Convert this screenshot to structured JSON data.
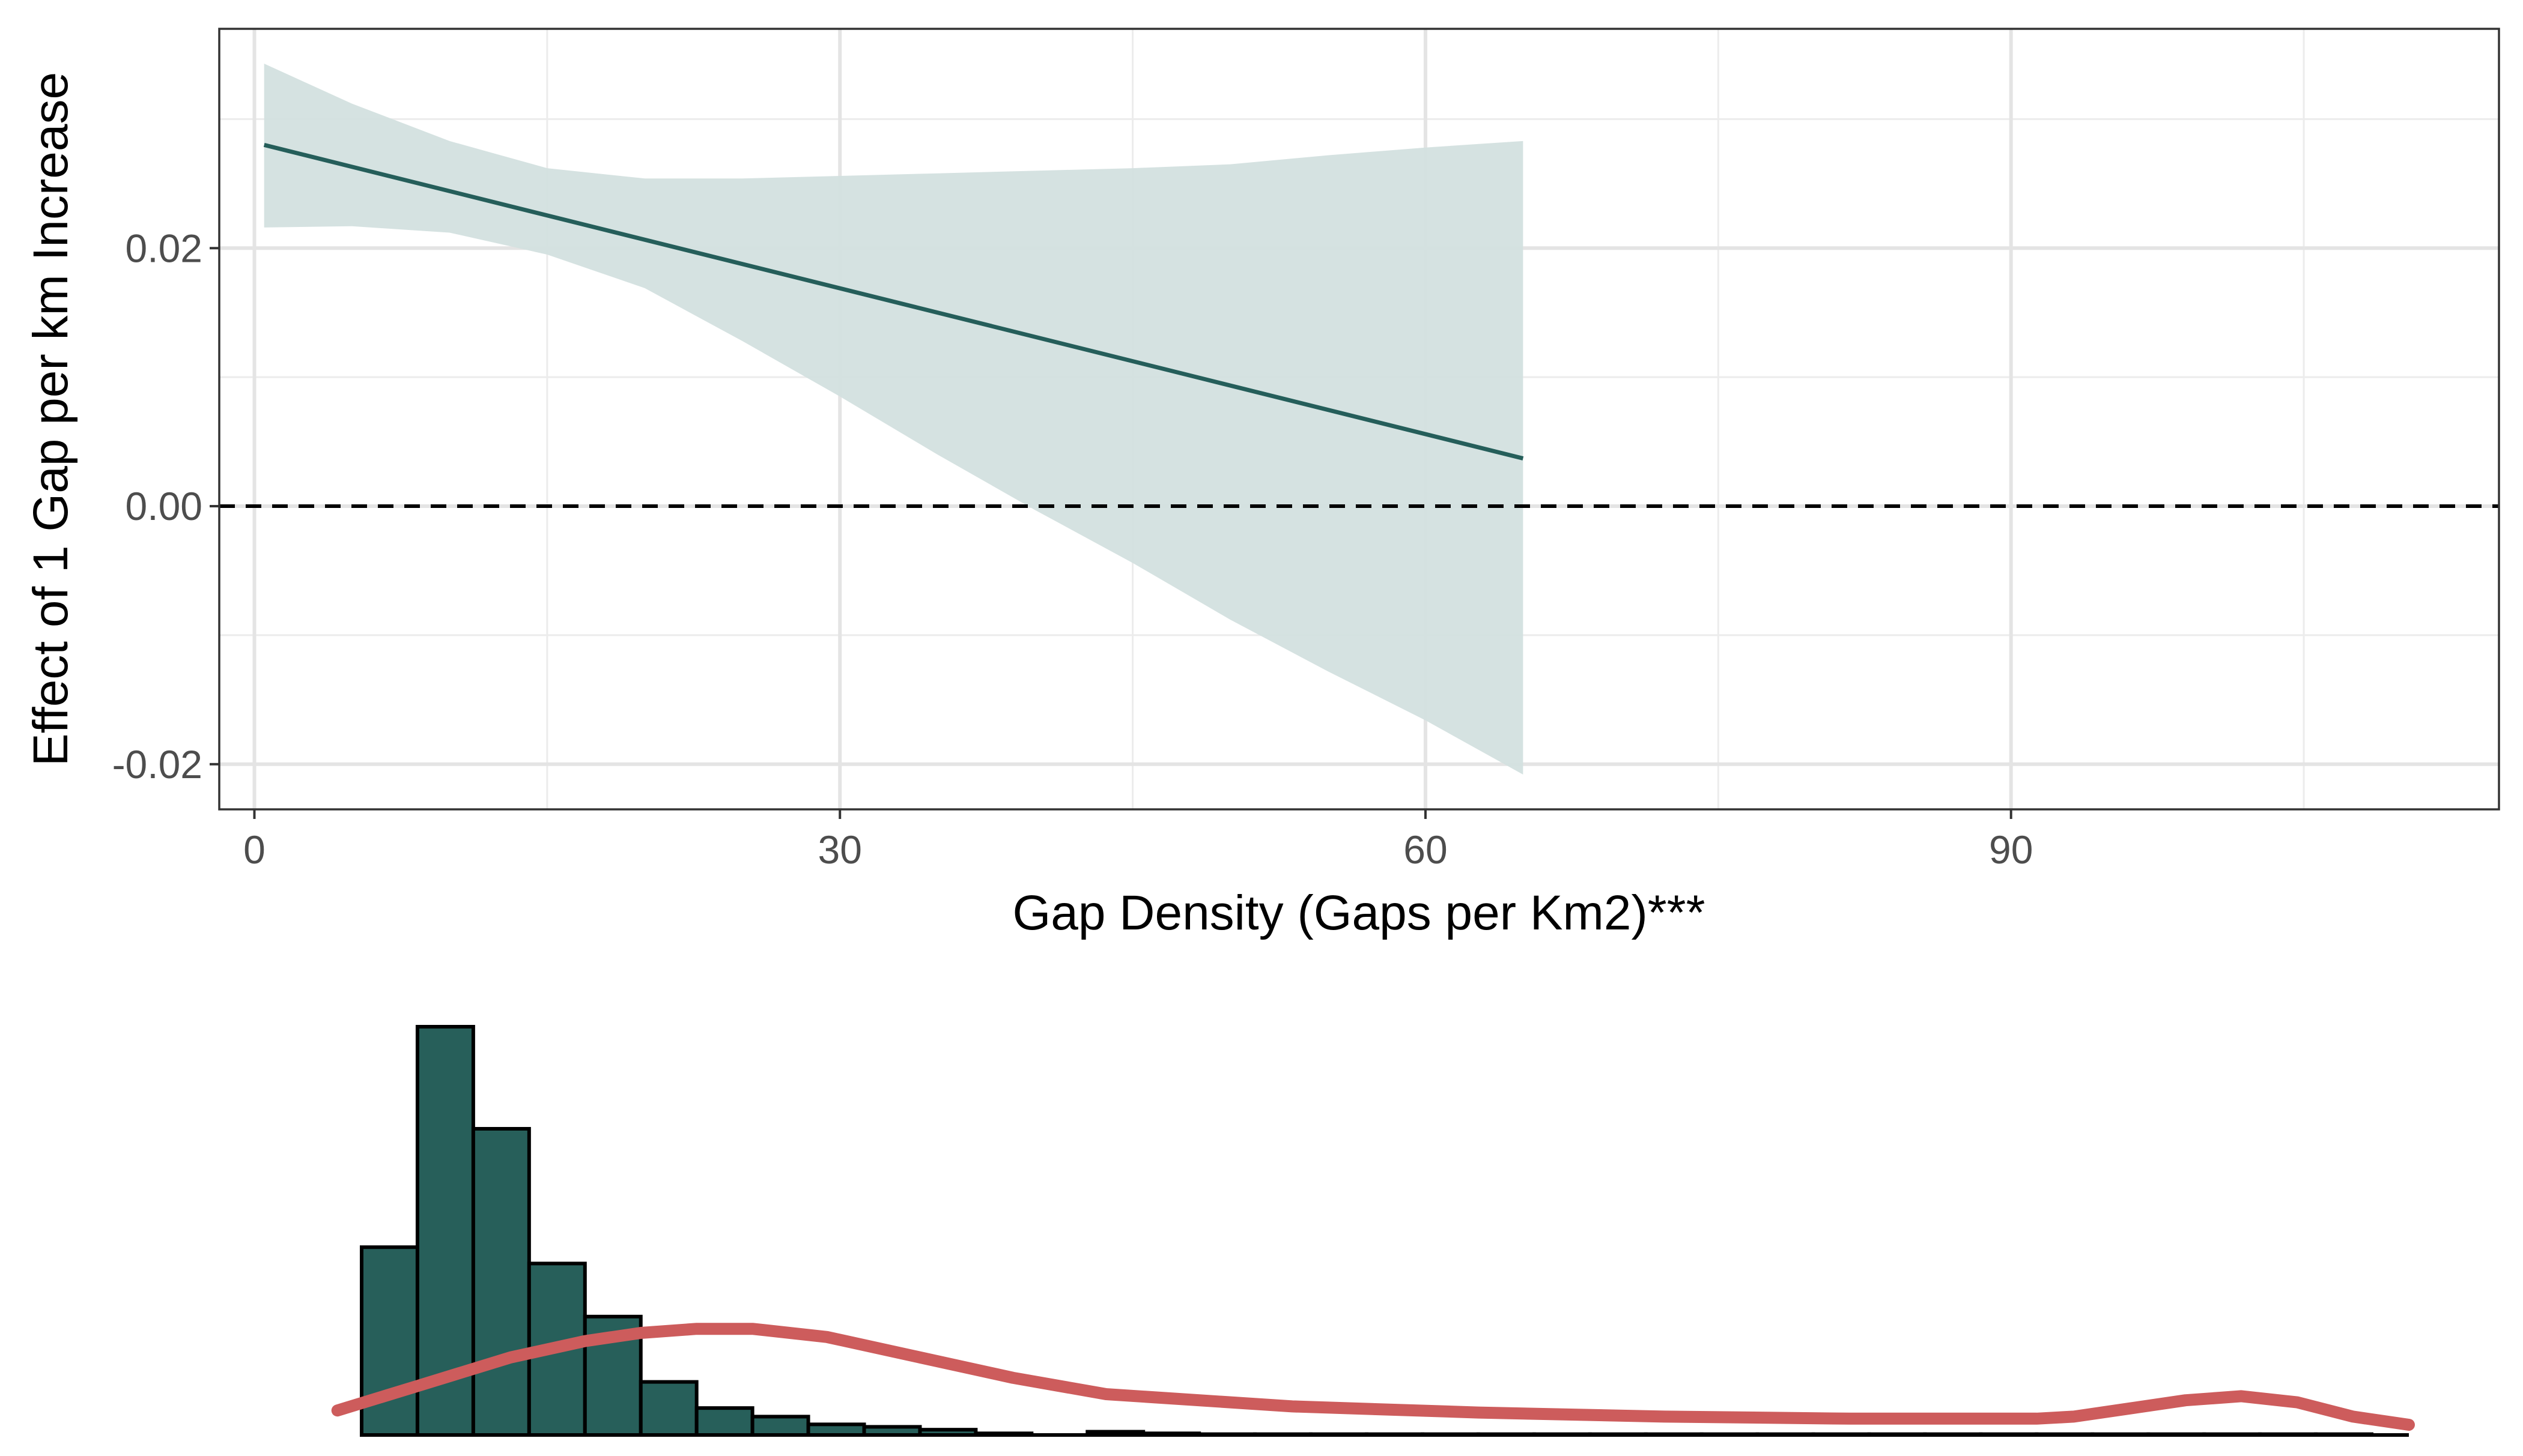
{
  "chart_data": [
    {
      "type": "line",
      "panel": "marginal-effect",
      "xlabel": "Gap Density (Gaps per Km2)***",
      "ylabel": "Effect of 1 Gap per km Increase",
      "xlim": [
        -1.8,
        115
      ],
      "ylim": [
        -0.0235,
        0.037
      ],
      "xticks": [
        0,
        30,
        60,
        90
      ],
      "xtick_labels": [
        "0",
        "30",
        "60",
        "90"
      ],
      "yticks": [
        -0.02,
        0.0,
        0.02
      ],
      "ytick_labels": [
        "-0.02",
        "0.00",
        "0.02"
      ],
      "x_minor_gridlines": [
        15,
        45,
        75,
        105
      ],
      "y_minor_gridlines": [
        -0.01,
        0.01,
        0.03
      ],
      "grid": true,
      "reference_line": {
        "y": 0,
        "style": "dashed",
        "color": "#000000"
      },
      "series": [
        {
          "x": [
            0.5,
            65
          ],
          "y": [
            0.028,
            0.0037
          ],
          "color": "#255e5a"
        }
      ],
      "confidence_band": {
        "color": "#d3e0df",
        "x": [
          0.5,
          5,
          10,
          15,
          20,
          25,
          30,
          35,
          40,
          45,
          50,
          55,
          60,
          65
        ],
        "upper": [
          0.0343,
          0.0312,
          0.0283,
          0.0262,
          0.0254,
          0.0254,
          0.0256,
          0.0258,
          0.026,
          0.0262,
          0.0265,
          0.0272,
          0.0278,
          0.0283
        ],
        "lower": [
          0.0216,
          0.0217,
          0.0212,
          0.0195,
          0.0169,
          0.0128,
          0.0085,
          0.004,
          -0.0003,
          -0.0044,
          -0.0088,
          -0.0128,
          -0.0166,
          -0.0208
        ]
      }
    },
    {
      "type": "bar",
      "panel": "distribution",
      "x_range": [
        0,
        110
      ],
      "bin_width": 3,
      "values": [
        0.46,
        1.0,
        0.75,
        0.42,
        0.29,
        0.13,
        0.066,
        0.045,
        0.026,
        0.02,
        0.013,
        0.004,
        0.0,
        0.008,
        0.004,
        0.002,
        0.002,
        0.002,
        0.002,
        0.002,
        0.002,
        0.002,
        0.002,
        0.002,
        0.002,
        0.002,
        0.002,
        0.002,
        0.002,
        0.002,
        0.002,
        0.002,
        0.002,
        0.002,
        0.002,
        0.002
      ],
      "bar_color": "#275f5a",
      "density_curve": {
        "color": "#cd5c5c",
        "x": [
          -1.3,
          3,
          8,
          12,
          15,
          18,
          21,
          25,
          30,
          35,
          40,
          50,
          60,
          70,
          80,
          90,
          92,
          95,
          98,
          101,
          104,
          107,
          110
        ],
        "y": [
          0.06,
          0.12,
          0.19,
          0.23,
          0.25,
          0.26,
          0.26,
          0.24,
          0.19,
          0.14,
          0.1,
          0.07,
          0.055,
          0.045,
          0.04,
          0.04,
          0.045,
          0.065,
          0.085,
          0.095,
          0.08,
          0.045,
          0.025
        ]
      }
    }
  ]
}
